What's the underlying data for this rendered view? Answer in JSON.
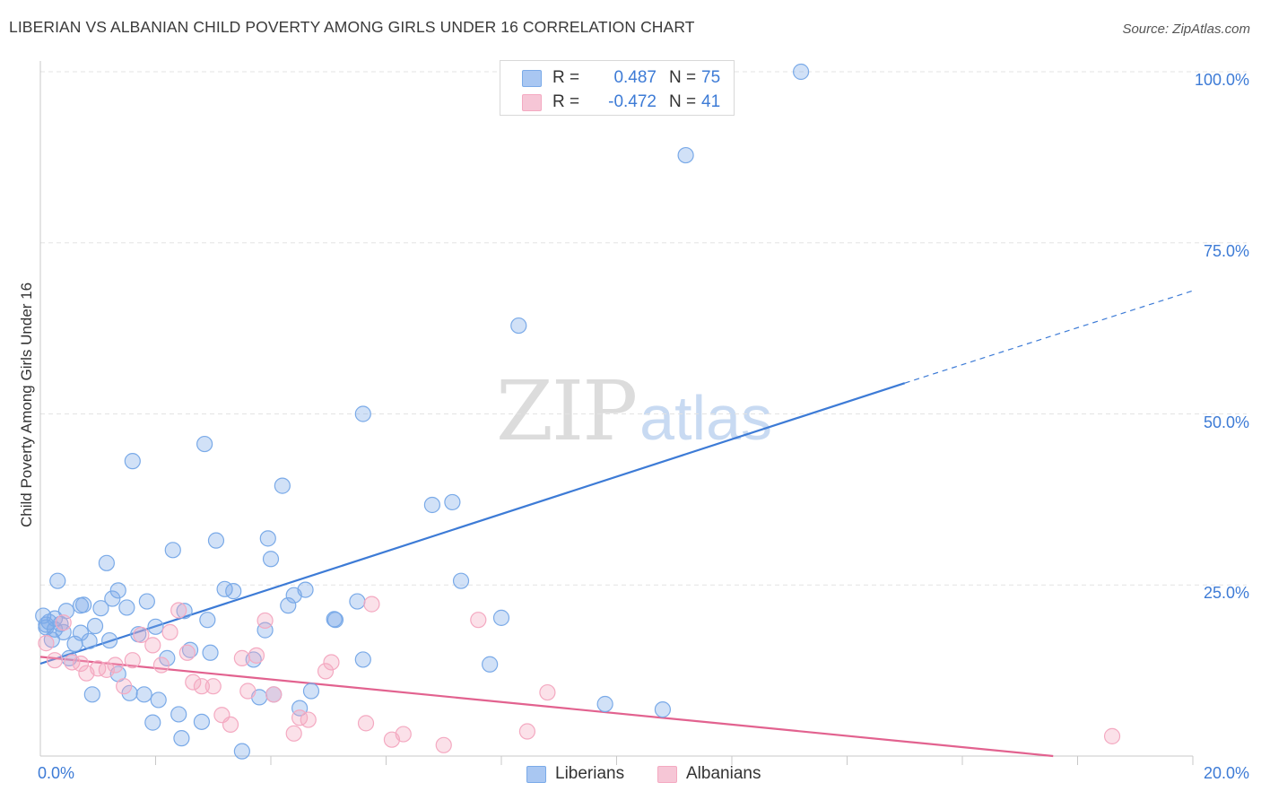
{
  "title": "LIBERIAN VS ALBANIAN CHILD POVERTY AMONG GIRLS UNDER 16 CORRELATION CHART",
  "source": "Source: ZipAtlas.com",
  "watermark": {
    "zip": "ZIP",
    "atlas": "atlas"
  },
  "legend": {
    "r_label": "R =",
    "n_label": "N =",
    "rows": [
      {
        "name": "Liberians",
        "r": "0.487",
        "n": "75",
        "color": "#a9c7f2"
      },
      {
        "name": "Albanians",
        "r": "-0.472",
        "n": "41",
        "color": "#f6b9cd"
      }
    ]
  },
  "chart_data": {
    "type": "scatter",
    "title": "LIBERIAN VS ALBANIAN CHILD POVERTY AMONG GIRLS UNDER 16 CORRELATION CHART",
    "xlabel": "",
    "ylabel": "Child Poverty Among Girls Under 16",
    "xlim": [
      0,
      20
    ],
    "ylim": [
      0,
      100
    ],
    "x_tick_labels": [
      "0.0%",
      "20.0%"
    ],
    "y_ticks": [
      25,
      50,
      75,
      100
    ],
    "y_tick_labels": [
      "25.0%",
      "50.0%",
      "75.0%",
      "100.0%"
    ],
    "grid": true,
    "legend_position": "bottom-center",
    "series": [
      {
        "name": "Liberians",
        "color": "#7aaae8",
        "stroke": "#3d7bd6",
        "r": 0.487,
        "n": 75,
        "trend": {
          "x0": 0,
          "y0": 13.5,
          "x1": 15.0,
          "y1": 54.5,
          "dash_to_x": 20.0,
          "dash_to_y": 68.0
        },
        "points": [
          [
            0.05,
            20.5
          ],
          [
            0.1,
            18.8
          ],
          [
            0.1,
            19.2
          ],
          [
            0.15,
            19.6
          ],
          [
            0.2,
            17.0
          ],
          [
            0.25,
            18.5
          ],
          [
            0.25,
            20.1
          ],
          [
            0.3,
            25.6
          ],
          [
            0.35,
            19.3
          ],
          [
            0.4,
            18.1
          ],
          [
            0.45,
            21.2
          ],
          [
            0.5,
            14.3
          ],
          [
            0.6,
            16.4
          ],
          [
            0.7,
            18.0
          ],
          [
            0.7,
            22.0
          ],
          [
            0.75,
            22.1
          ],
          [
            0.85,
            16.8
          ],
          [
            0.9,
            9.0
          ],
          [
            0.95,
            19.0
          ],
          [
            1.05,
            21.6
          ],
          [
            1.2,
            16.9
          ],
          [
            1.15,
            28.2
          ],
          [
            1.25,
            23.0
          ],
          [
            1.35,
            12.0
          ],
          [
            1.35,
            24.2
          ],
          [
            1.5,
            21.7
          ],
          [
            1.55,
            9.2
          ],
          [
            1.6,
            43.1
          ],
          [
            1.7,
            17.8
          ],
          [
            1.8,
            9.0
          ],
          [
            1.85,
            22.6
          ],
          [
            1.95,
            4.9
          ],
          [
            2.0,
            18.9
          ],
          [
            2.05,
            8.2
          ],
          [
            2.2,
            14.3
          ],
          [
            2.3,
            30.1
          ],
          [
            2.4,
            6.1
          ],
          [
            2.45,
            2.6
          ],
          [
            2.5,
            21.2
          ],
          [
            2.6,
            15.5
          ],
          [
            2.8,
            5.0
          ],
          [
            2.85,
            45.6
          ],
          [
            2.9,
            19.9
          ],
          [
            2.95,
            15.1
          ],
          [
            3.05,
            31.5
          ],
          [
            3.2,
            24.4
          ],
          [
            3.35,
            24.1
          ],
          [
            3.5,
            0.7
          ],
          [
            3.7,
            14.1
          ],
          [
            3.8,
            8.6
          ],
          [
            3.9,
            18.4
          ],
          [
            3.95,
            31.8
          ],
          [
            4.0,
            28.8
          ],
          [
            4.05,
            9.0
          ],
          [
            4.2,
            39.5
          ],
          [
            4.3,
            22.0
          ],
          [
            4.4,
            23.5
          ],
          [
            4.5,
            7.0
          ],
          [
            4.6,
            24.3
          ],
          [
            4.7,
            9.5
          ],
          [
            5.1,
            20.0
          ],
          [
            5.12,
            19.9
          ],
          [
            5.5,
            22.6
          ],
          [
            5.6,
            50.0
          ],
          [
            5.6,
            14.1
          ],
          [
            6.8,
            36.7
          ],
          [
            7.15,
            37.1
          ],
          [
            7.3,
            25.6
          ],
          [
            7.8,
            13.4
          ],
          [
            8.0,
            20.2
          ],
          [
            8.3,
            62.9
          ],
          [
            9.8,
            7.6
          ],
          [
            10.8,
            6.8
          ],
          [
            11.2,
            87.8
          ],
          [
            13.2,
            100.0
          ]
        ]
      },
      {
        "name": "Albanians",
        "color": "#f4a9c1",
        "stroke": "#e2628f",
        "r": -0.472,
        "n": 41,
        "trend": {
          "x0": 0,
          "y0": 14.5,
          "x1": 20.0,
          "y1": -2.0
        },
        "points": [
          [
            0.1,
            16.5
          ],
          [
            0.25,
            14.0
          ],
          [
            0.4,
            19.5
          ],
          [
            0.55,
            13.7
          ],
          [
            0.7,
            13.5
          ],
          [
            0.8,
            12.1
          ],
          [
            1.0,
            12.8
          ],
          [
            1.15,
            12.6
          ],
          [
            1.3,
            13.3
          ],
          [
            1.45,
            10.2
          ],
          [
            1.6,
            14.0
          ],
          [
            1.75,
            17.7
          ],
          [
            1.95,
            16.2
          ],
          [
            2.1,
            13.3
          ],
          [
            2.25,
            18.1
          ],
          [
            2.4,
            21.3
          ],
          [
            2.55,
            15.1
          ],
          [
            2.65,
            10.8
          ],
          [
            2.8,
            10.2
          ],
          [
            3.0,
            10.2
          ],
          [
            3.15,
            6.0
          ],
          [
            3.3,
            4.6
          ],
          [
            3.5,
            14.3
          ],
          [
            3.6,
            9.5
          ],
          [
            3.75,
            14.7
          ],
          [
            3.9,
            19.8
          ],
          [
            4.05,
            9.0
          ],
          [
            4.4,
            3.3
          ],
          [
            4.5,
            5.6
          ],
          [
            4.65,
            5.3
          ],
          [
            4.95,
            12.4
          ],
          [
            5.05,
            13.7
          ],
          [
            5.65,
            4.8
          ],
          [
            5.75,
            22.2
          ],
          [
            6.1,
            2.4
          ],
          [
            6.3,
            3.2
          ],
          [
            7.0,
            1.6
          ],
          [
            7.6,
            19.9
          ],
          [
            8.45,
            3.6
          ],
          [
            8.8,
            9.3
          ],
          [
            18.6,
            2.9
          ]
        ]
      }
    ]
  }
}
